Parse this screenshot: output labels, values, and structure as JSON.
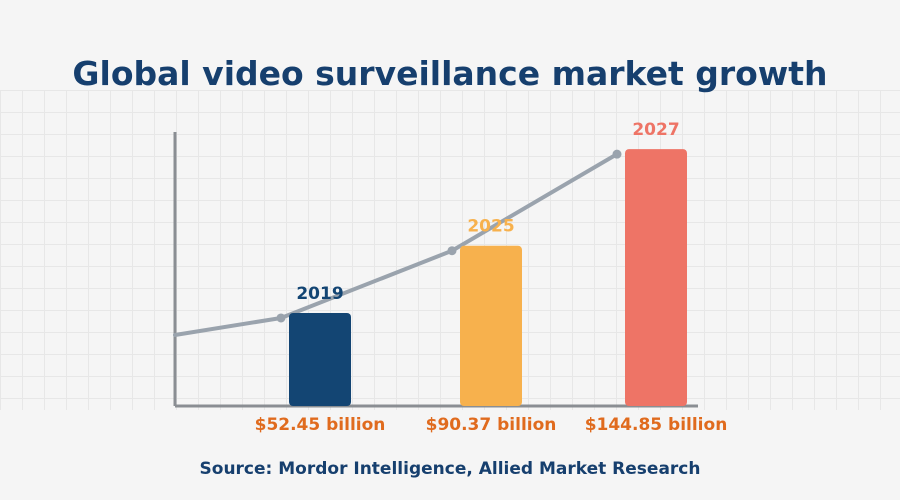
{
  "title": "Global video surveillance market growth",
  "source": "Source: Mordor Intelligence, Allied Market Research",
  "chart_data": {
    "type": "bar",
    "title": "Global video surveillance market growth",
    "categories": [
      "2019",
      "2025",
      "2027"
    ],
    "values": [
      52.45,
      90.37,
      144.85
    ],
    "value_labels": [
      "$52.45 billion",
      "$90.37 billion",
      "$144.85 billion"
    ],
    "colors": [
      "#134573",
      "#f7b14d",
      "#ee7466"
    ],
    "ylim": [
      0,
      150
    ],
    "grid": true,
    "trend_line": true,
    "xlabel": "",
    "ylabel": ""
  }
}
